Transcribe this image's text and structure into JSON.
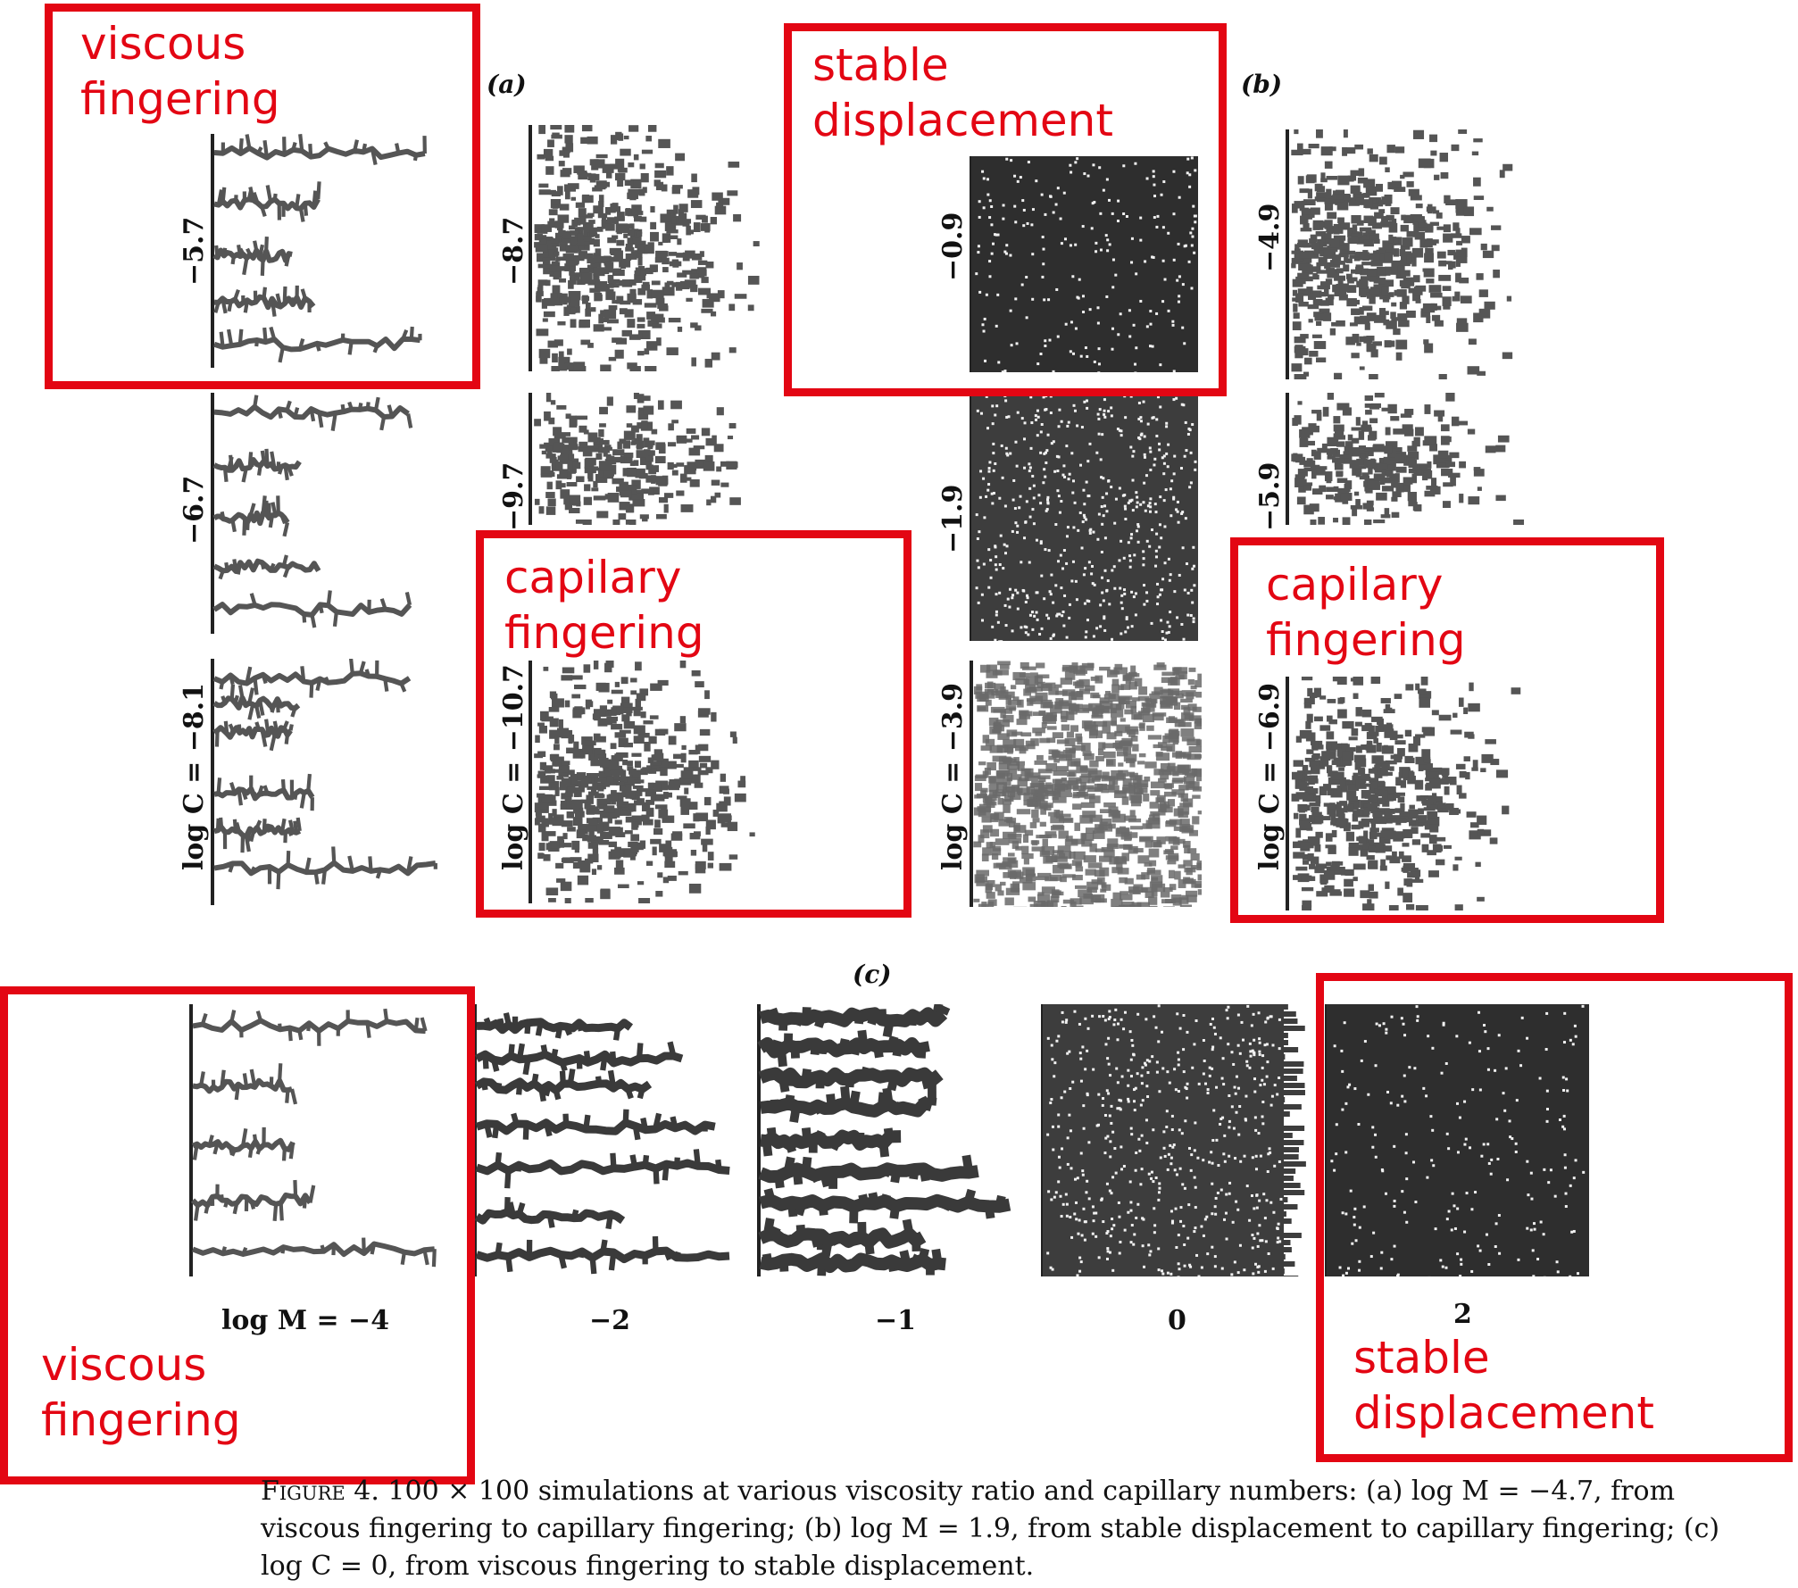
{
  "figure": {
    "panel_labels": {
      "a": "(a)",
      "b": "(b)",
      "c": "(c)"
    },
    "row_a": [
      {
        "label": "−5.7",
        "pattern": "viscous"
      },
      {
        "label": "−6.7",
        "pattern": "viscous"
      },
      {
        "label": "log C = −8.1",
        "pattern": "viscous-capillary"
      }
    ],
    "row_a2": [
      {
        "label": "−8.7",
        "pattern": "capillary"
      },
      {
        "label": "−9.7",
        "pattern": "capillary-sparse"
      },
      {
        "label": "log C = −10.7",
        "pattern": "capillary"
      }
    ],
    "row_b": [
      {
        "label": "−0.9",
        "pattern": "stable"
      },
      {
        "label": "−1.9",
        "pattern": "stable-dense"
      },
      {
        "label": "log C = −3.9",
        "pattern": "mixed-light"
      }
    ],
    "row_b2": [
      {
        "label": "−4.9",
        "pattern": "capillary"
      },
      {
        "label": "−5.9",
        "pattern": "capillary-sparse"
      },
      {
        "label": "log C = −6.9",
        "pattern": "capillary"
      }
    ],
    "row_c": [
      {
        "label": "log M = −4",
        "pattern": "viscous"
      },
      {
        "label": "−2",
        "pattern": "viscous-thick"
      },
      {
        "label": "−1",
        "pattern": "fingers-thick"
      },
      {
        "label": "0",
        "pattern": "stable-fringe"
      },
      {
        "label": "2",
        "pattern": "stable"
      }
    ]
  },
  "annotations": {
    "viscous_1": {
      "line1": "viscous",
      "line2": "fingering"
    },
    "stable_1": {
      "line1": "stable",
      "line2": "displacement"
    },
    "capillary_1": {
      "line1": "capilary",
      "line2": "fingering"
    },
    "capillary_2": {
      "line1": "capilary",
      "line2": "fingering"
    },
    "viscous_2": {
      "line1": "viscous",
      "line2": "fingering"
    },
    "stable_2": {
      "line1": "stable",
      "line2": "displacement"
    }
  },
  "caption": {
    "figure_word": "Figure",
    "rest": " 4. 100 × 100 simulations at various viscosity ratio and capillary numbers: (a) log M = −4.7, from viscous fingering to capillary fingering; (b) log M = 1.9, from stable displacement to capillary fingering; (c) log C = 0, from viscous fingering to stable displacement."
  },
  "colors": {
    "annotation": "#e30613",
    "fluid": "#555555",
    "dark_fluid": "#3a3a3a"
  }
}
